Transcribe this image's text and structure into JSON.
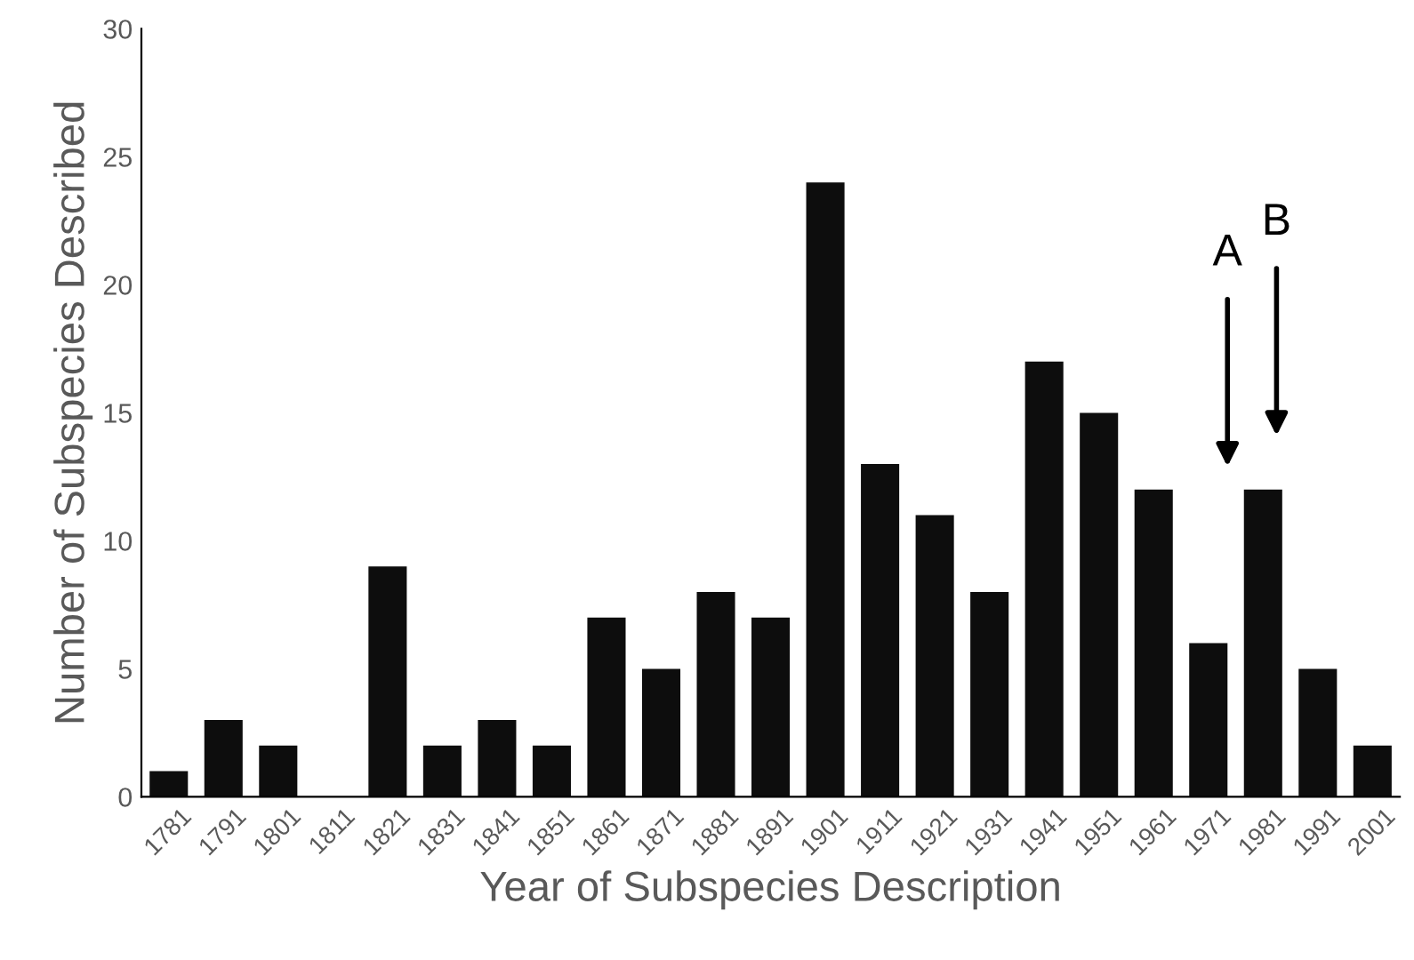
{
  "chart_data": {
    "type": "bar",
    "xlabel": "Year of Subspecies Description",
    "ylabel": "Number of Subspecies Described",
    "categories": [
      "1781",
      "1791",
      "1801",
      "1811",
      "1821",
      "1831",
      "1841",
      "1851",
      "1861",
      "1871",
      "1881",
      "1891",
      "1901",
      "1911",
      "1921",
      "1931",
      "1941",
      "1951",
      "1961",
      "1971",
      "1981",
      "1991",
      "2001"
    ],
    "values": [
      1,
      3,
      2,
      0,
      9,
      2,
      3,
      2,
      7,
      5,
      8,
      7,
      24,
      13,
      11,
      8,
      17,
      15,
      12,
      6,
      12,
      5,
      2
    ],
    "color": "#0d0d0d",
    "ylim": [
      0,
      30
    ],
    "yticks": [
      0,
      5,
      10,
      15,
      20,
      25,
      30
    ],
    "grid": false,
    "annotations": [
      "A",
      "B"
    ]
  }
}
